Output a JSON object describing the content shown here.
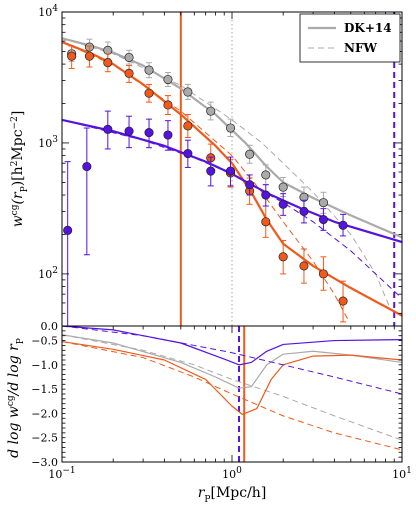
{
  "chart_data": [
    {
      "panel": "top",
      "type": "scatter",
      "x_scale": "log",
      "y_scale": "log",
      "xlim": [
        0.1,
        10
      ],
      "ylim": [
        40,
        10000
      ],
      "ylabel_parts": [
        "w",
        "cg",
        "(r",
        "P",
        ")[h",
        "2",
        "Mpc",
        "−2",
        "]"
      ],
      "y_ticks": [
        {
          "value": 10000,
          "base": "10",
          "exp": "4"
        },
        {
          "value": 1000,
          "base": "10",
          "exp": "3"
        },
        {
          "value": 100,
          "base": "10",
          "exp": "2"
        }
      ],
      "bottom_tick": {
        "value": 40,
        "label": "0.0"
      },
      "legend": {
        "position": "top-right",
        "entries": [
          {
            "label": "DK+14",
            "style": "solid",
            "color": "#aaaaaa"
          },
          {
            "label": "NFW",
            "style": "dashed",
            "color": "#aaaaaa"
          }
        ]
      },
      "series": [
        {
          "color": "#aaaaaa",
          "points": [
            {
              "x": 0.114,
              "y": 4800,
              "lo": 4200,
              "hi": 5500
            },
            {
              "x": 0.145,
              "y": 5400,
              "lo": 4700,
              "hi": 6200
            },
            {
              "x": 0.186,
              "y": 5100,
              "lo": 4400,
              "hi": 5900
            },
            {
              "x": 0.248,
              "y": 4500,
              "lo": 4000,
              "hi": 5100
            },
            {
              "x": 0.325,
              "y": 3600,
              "lo": 3150,
              "hi": 4100
            },
            {
              "x": 0.42,
              "y": 3050,
              "lo": 2700,
              "hi": 3450
            },
            {
              "x": 0.55,
              "y": 2450,
              "lo": 2150,
              "hi": 2800
            },
            {
              "x": 0.75,
              "y": 1750,
              "lo": 1500,
              "hi": 2050
            },
            {
              "x": 0.98,
              "y": 1300,
              "lo": 1120,
              "hi": 1520
            },
            {
              "x": 1.27,
              "y": 820,
              "lo": 700,
              "hi": 960
            },
            {
              "x": 1.58,
              "y": 570,
              "lo": 480,
              "hi": 680
            },
            {
              "x": 2.0,
              "y": 460,
              "lo": 390,
              "hi": 545
            },
            {
              "x": 2.65,
              "y": 385,
              "lo": 320,
              "hi": 460
            },
            {
              "x": 3.45,
              "y": 350,
              "lo": 290,
              "hi": 420
            }
          ],
          "model_dk14": [
            {
              "x": 0.1,
              "y": 6300
            },
            {
              "x": 0.15,
              "y": 5500
            },
            {
              "x": 0.2,
              "y": 4900
            },
            {
              "x": 0.3,
              "y": 3900
            },
            {
              "x": 0.5,
              "y": 2600
            },
            {
              "x": 0.8,
              "y": 1650
            },
            {
              "x": 1.2,
              "y": 1000
            },
            {
              "x": 1.6,
              "y": 660
            },
            {
              "x": 2.0,
              "y": 500
            },
            {
              "x": 3.0,
              "y": 380
            },
            {
              "x": 5.0,
              "y": 280
            },
            {
              "x": 10.0,
              "y": 190
            }
          ],
          "model_nfw": [
            {
              "x": 0.1,
              "y": 6300
            },
            {
              "x": 0.2,
              "y": 4800
            },
            {
              "x": 0.5,
              "y": 2750
            },
            {
              "x": 1.0,
              "y": 1500
            },
            {
              "x": 1.5,
              "y": 1000
            },
            {
              "x": 2.0,
              "y": 700
            },
            {
              "x": 3.0,
              "y": 420
            },
            {
              "x": 5.0,
              "y": 200
            },
            {
              "x": 7.0,
              "y": 100
            },
            {
              "x": 8.5,
              "y": 55
            }
          ]
        },
        {
          "color": "#ef5a1a",
          "points": [
            {
              "x": 0.114,
              "y": 4600,
              "lo": 3700,
              "hi": 5500
            },
            {
              "x": 0.145,
              "y": 4600,
              "lo": 3800,
              "hi": 5500
            },
            {
              "x": 0.186,
              "y": 4100,
              "lo": 3500,
              "hi": 4800
            },
            {
              "x": 0.248,
              "y": 3400,
              "lo": 2900,
              "hi": 3900
            },
            {
              "x": 0.325,
              "y": 2400,
              "lo": 2050,
              "hi": 2800
            },
            {
              "x": 0.42,
              "y": 1950,
              "lo": 1650,
              "hi": 2300
            },
            {
              "x": 0.55,
              "y": 1350,
              "lo": 1100,
              "hi": 1650
            },
            {
              "x": 0.75,
              "y": 770,
              "lo": 600,
              "hi": 980
            },
            {
              "x": 0.98,
              "y": 590,
              "lo": 460,
              "hi": 750
            },
            {
              "x": 1.27,
              "y": 430,
              "lo": 340,
              "hi": 540
            },
            {
              "x": 1.58,
              "y": 250,
              "lo": 190,
              "hi": 330
            },
            {
              "x": 2.0,
              "y": 135,
              "lo": 100,
              "hi": 180
            },
            {
              "x": 2.65,
              "y": 115,
              "lo": 85,
              "hi": 155
            },
            {
              "x": 3.45,
              "y": 100,
              "lo": 75,
              "hi": 135
            },
            {
              "x": 4.5,
              "y": 62,
              "lo": 43,
              "hi": 88
            }
          ],
          "model_dk14": [
            {
              "x": 0.1,
              "y": 5900
            },
            {
              "x": 0.15,
              "y": 4800
            },
            {
              "x": 0.2,
              "y": 4000
            },
            {
              "x": 0.3,
              "y": 2800
            },
            {
              "x": 0.5,
              "y": 1650
            },
            {
              "x": 0.8,
              "y": 950
            },
            {
              "x": 1.0,
              "y": 700
            },
            {
              "x": 1.3,
              "y": 420
            },
            {
              "x": 1.6,
              "y": 260
            },
            {
              "x": 2.0,
              "y": 170
            },
            {
              "x": 3.0,
              "y": 115
            },
            {
              "x": 5.0,
              "y": 78
            },
            {
              "x": 10.0,
              "y": 48
            }
          ],
          "model_nfw": [
            {
              "x": 0.1,
              "y": 5900
            },
            {
              "x": 0.2,
              "y": 3950
            },
            {
              "x": 0.5,
              "y": 1750
            },
            {
              "x": 1.0,
              "y": 800
            },
            {
              "x": 1.5,
              "y": 420
            },
            {
              "x": 2.0,
              "y": 250
            },
            {
              "x": 3.0,
              "y": 125
            },
            {
              "x": 4.0,
              "y": 70
            },
            {
              "x": 4.8,
              "y": 45
            }
          ]
        },
        {
          "color": "#5512e0",
          "points": [
            {
              "x": 0.108,
              "y": 215,
              "lo": 40,
              "hi": 720
            },
            {
              "x": 0.14,
              "y": 660,
              "lo": 140,
              "hi": 1300
            },
            {
              "x": 0.186,
              "y": 1270,
              "lo": 900,
              "hi": 1750
            },
            {
              "x": 0.248,
              "y": 1230,
              "lo": 920,
              "hi": 1600
            },
            {
              "x": 0.325,
              "y": 1200,
              "lo": 920,
              "hi": 1520
            },
            {
              "x": 0.42,
              "y": 1150,
              "lo": 880,
              "hi": 1480
            },
            {
              "x": 0.55,
              "y": 830,
              "lo": 650,
              "hi": 1050
            },
            {
              "x": 0.75,
              "y": 610,
              "lo": 470,
              "hi": 780
            },
            {
              "x": 0.98,
              "y": 610,
              "lo": 470,
              "hi": 780
            },
            {
              "x": 1.27,
              "y": 480,
              "lo": 400,
              "hi": 570
            },
            {
              "x": 1.58,
              "y": 400,
              "lo": 330,
              "hi": 480
            },
            {
              "x": 2.0,
              "y": 340,
              "lo": 280,
              "hi": 410
            },
            {
              "x": 2.65,
              "y": 300,
              "lo": 245,
              "hi": 365
            },
            {
              "x": 3.45,
              "y": 260,
              "lo": 215,
              "hi": 315
            },
            {
              "x": 4.5,
              "y": 235,
              "lo": 195,
              "hi": 285
            }
          ],
          "model_dk14": [
            {
              "x": 0.1,
              "y": 1500
            },
            {
              "x": 0.2,
              "y": 1230
            },
            {
              "x": 0.4,
              "y": 950
            },
            {
              "x": 0.7,
              "y": 720
            },
            {
              "x": 1.0,
              "y": 580
            },
            {
              "x": 1.3,
              "y": 480
            },
            {
              "x": 1.7,
              "y": 400
            },
            {
              "x": 2.5,
              "y": 320
            },
            {
              "x": 4.0,
              "y": 250
            },
            {
              "x": 10.0,
              "y": 175
            }
          ],
          "model_nfw": [
            {
              "x": 0.1,
              "y": 1500
            },
            {
              "x": 0.3,
              "y": 1050
            },
            {
              "x": 0.6,
              "y": 770
            },
            {
              "x": 1.0,
              "y": 580
            },
            {
              "x": 2.0,
              "y": 350
            },
            {
              "x": 3.0,
              "y": 250
            },
            {
              "x": 5.0,
              "y": 150
            },
            {
              "x": 8.0,
              "y": 85
            },
            {
              "x": 10.0,
              "y": 65
            }
          ]
        }
      ],
      "vlines": [
        {
          "x": 0.5,
          "color": "#ef5a1a",
          "style": "solid"
        },
        {
          "x": 1.0,
          "color": "#aaaaaa",
          "style": "dotted"
        },
        {
          "x": 9.0,
          "color": "#5512e0",
          "style": "dashed"
        }
      ]
    },
    {
      "panel": "bottom",
      "type": "line",
      "x_scale": "log",
      "xlim": [
        0.1,
        10
      ],
      "ylim": [
        -3.0,
        -0.2
      ],
      "xlabel_parts": [
        "r",
        "P",
        "[Mpc/h]"
      ],
      "ylabel_parts": [
        "d log w",
        "cg",
        "/d log r",
        "P"
      ],
      "y_ticks": [
        "−0.5",
        "−1.0",
        "−1.5",
        "−2.0",
        "−2.5",
        "−3.0"
      ],
      "y_tick_values": [
        -0.5,
        -1.0,
        -1.5,
        -2.0,
        -2.5,
        -3.0
      ],
      "x_ticks": [
        {
          "value": 0.1,
          "base": "10",
          "exp": "−1"
        },
        {
          "value": 1,
          "base": "10",
          "exp": "0"
        },
        {
          "value": 10,
          "base": "10",
          "exp": "1"
        }
      ],
      "series": [
        {
          "color": "#aaaaaa",
          "dk14": [
            {
              "x": 0.1,
              "y": -0.38
            },
            {
              "x": 0.2,
              "y": -0.55
            },
            {
              "x": 0.5,
              "y": -0.95
            },
            {
              "x": 0.8,
              "y": -1.25
            },
            {
              "x": 1.1,
              "y": -1.48
            },
            {
              "x": 1.3,
              "y": -1.45
            },
            {
              "x": 1.6,
              "y": -1.0
            },
            {
              "x": 2.0,
              "y": -0.78
            },
            {
              "x": 3.0,
              "y": -0.72
            },
            {
              "x": 5.0,
              "y": -0.8
            },
            {
              "x": 10.0,
              "y": -0.95
            }
          ],
          "nfw": [
            {
              "x": 0.1,
              "y": -0.38
            },
            {
              "x": 0.3,
              "y": -0.7
            },
            {
              "x": 0.6,
              "y": -1.0
            },
            {
              "x": 1.0,
              "y": -1.3
            },
            {
              "x": 2.0,
              "y": -1.65
            },
            {
              "x": 4.0,
              "y": -2.05
            },
            {
              "x": 10.0,
              "y": -2.55
            }
          ]
        },
        {
          "color": "#ef5a1a",
          "dk14": [
            {
              "x": 0.1,
              "y": -0.52
            },
            {
              "x": 0.2,
              "y": -0.68
            },
            {
              "x": 0.4,
              "y": -0.9
            },
            {
              "x": 0.7,
              "y": -1.3
            },
            {
              "x": 1.0,
              "y": -1.85
            },
            {
              "x": 1.15,
              "y": -2.02
            },
            {
              "x": 1.4,
              "y": -1.9
            },
            {
              "x": 1.7,
              "y": -1.3
            },
            {
              "x": 2.0,
              "y": -1.0
            },
            {
              "x": 3.0,
              "y": -0.82
            },
            {
              "x": 5.0,
              "y": -0.8
            },
            {
              "x": 10.0,
              "y": -0.9
            }
          ],
          "nfw": [
            {
              "x": 0.1,
              "y": -0.52
            },
            {
              "x": 0.3,
              "y": -0.85
            },
            {
              "x": 0.6,
              "y": -1.25
            },
            {
              "x": 1.0,
              "y": -1.6
            },
            {
              "x": 2.0,
              "y": -2.05
            },
            {
              "x": 4.0,
              "y": -2.4
            },
            {
              "x": 10.0,
              "y": -2.75
            }
          ]
        },
        {
          "color": "#5512e0",
          "dk14": [
            {
              "x": 0.1,
              "y": -0.2
            },
            {
              "x": 0.2,
              "y": -0.28
            },
            {
              "x": 0.5,
              "y": -0.55
            },
            {
              "x": 0.9,
              "y": -0.88
            },
            {
              "x": 1.1,
              "y": -1.0
            },
            {
              "x": 1.3,
              "y": -0.95
            },
            {
              "x": 1.6,
              "y": -0.72
            },
            {
              "x": 2.0,
              "y": -0.58
            },
            {
              "x": 4.0,
              "y": -0.5
            },
            {
              "x": 10.0,
              "y": -0.48
            }
          ],
          "nfw": [
            {
              "x": 0.1,
              "y": -0.2
            },
            {
              "x": 0.3,
              "y": -0.4
            },
            {
              "x": 0.6,
              "y": -0.6
            },
            {
              "x": 1.0,
              "y": -0.75
            },
            {
              "x": 2.0,
              "y": -1.0
            },
            {
              "x": 4.0,
              "y": -1.25
            },
            {
              "x": 10.0,
              "y": -1.6
            }
          ]
        }
      ],
      "vlines": [
        {
          "x": 1.1,
          "color": "#5512e0",
          "style": "dashed"
        },
        {
          "x": 1.18,
          "color": "#ef5a1a",
          "style": "solid"
        }
      ]
    }
  ]
}
